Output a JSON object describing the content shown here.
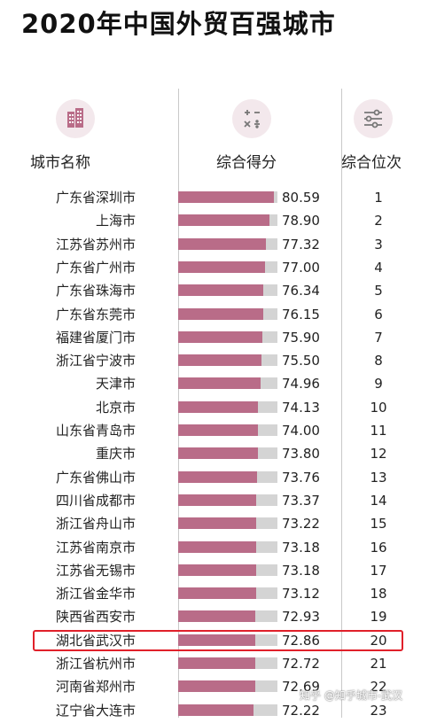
{
  "page": {
    "title": "2020年中国外贸百强城市",
    "watermark": "知乎 @知乎城市-武汉"
  },
  "chart_data": {
    "type": "bar",
    "title": "2020年中国外贸百强城市",
    "columns": [
      "城市名称",
      "综合得分",
      "综合位次"
    ],
    "highlighted_category": "湖北省武汉市",
    "bar_colors": {
      "fill": "#b96c88",
      "track": "#d4d4d4",
      "highlight_border": "#e0202a"
    },
    "xlim": [
      0,
      100
    ],
    "categories": [
      "广东省深圳市",
      "上海市",
      "江苏省苏州市",
      "广东省广州市",
      "广东省珠海市",
      "广东省东莞市",
      "福建省厦门市",
      "浙江省宁波市",
      "天津市",
      "北京市",
      "山东省青岛市",
      "重庆市",
      "广东省佛山市",
      "四川省成都市",
      "浙江省舟山市",
      "江苏省南京市",
      "江苏省无锡市",
      "浙江省金华市",
      "陕西省西安市",
      "湖北省武汉市",
      "浙江省杭州市",
      "河南省郑州市",
      "辽宁省大连市"
    ],
    "values": [
      80.59,
      78.9,
      77.32,
      77.0,
      76.34,
      76.15,
      75.9,
      75.5,
      74.96,
      74.13,
      74.0,
      73.8,
      73.76,
      73.37,
      73.22,
      73.18,
      73.18,
      73.12,
      72.93,
      72.86,
      72.72,
      72.69,
      72.22
    ],
    "value_labels": [
      "80.59",
      "78.90",
      "77.32",
      "77.00",
      "76.34",
      "76.15",
      "75.90",
      "75.50",
      "74.96",
      "74.13",
      "74.00",
      "73.80",
      "73.76",
      "73.37",
      "73.22",
      "73.18",
      "73.18",
      "73.12",
      "72.93",
      "72.86",
      "72.72",
      "72.69",
      "72.22"
    ],
    "ranks": [
      "1",
      "2",
      "3",
      "4",
      "5",
      "6",
      "7",
      "8",
      "9",
      "10",
      "11",
      "12",
      "13",
      "14",
      "15",
      "16",
      "17",
      "18",
      "19",
      "20",
      "21",
      "22",
      "23"
    ]
  },
  "icons": [
    "buildings-icon",
    "math-operators-icon",
    "sliders-icon"
  ]
}
